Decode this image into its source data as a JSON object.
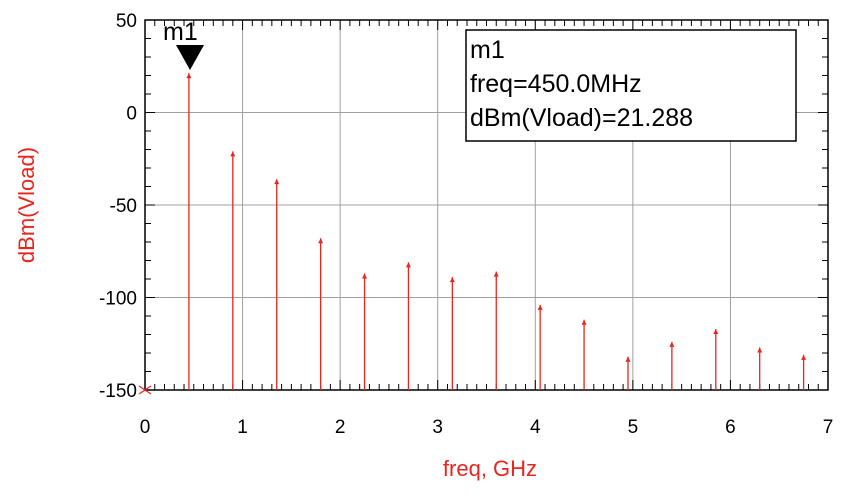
{
  "chart_data": {
    "type": "stem",
    "xlabel": "freq, GHz",
    "ylabel": "dBm(Vload)",
    "xlim": [
      0,
      7
    ],
    "ylim": [
      -150,
      50
    ],
    "xticks": [
      "0",
      "1",
      "2",
      "3",
      "4",
      "5",
      "6",
      "7"
    ],
    "yticks": [
      "50",
      "0",
      "-50",
      "-100",
      "-150"
    ],
    "grid": true,
    "series": [
      {
        "color": "#e8251e",
        "x": [
          0.45,
          0.9,
          1.35,
          1.8,
          2.25,
          2.7,
          3.15,
          3.6,
          4.05,
          4.5,
          4.95,
          5.4,
          5.85,
          6.3,
          6.75
        ],
        "y": [
          21.288,
          -21,
          -36,
          -68,
          -87,
          -81,
          -89,
          -86,
          -104,
          -112,
          -132,
          -124,
          -117,
          -127,
          -131
        ]
      }
    ],
    "marker": {
      "name": "m1",
      "x": 0.45,
      "y": 21.288,
      "label_lines": [
        "m1",
        "freq=450.0MHz",
        "dBm(Vload)=21.288"
      ]
    }
  },
  "colors": {
    "stem": "#e8251e",
    "axis_title": "#e8251e",
    "grid": "#a0a0a0",
    "axis": "#000000"
  }
}
